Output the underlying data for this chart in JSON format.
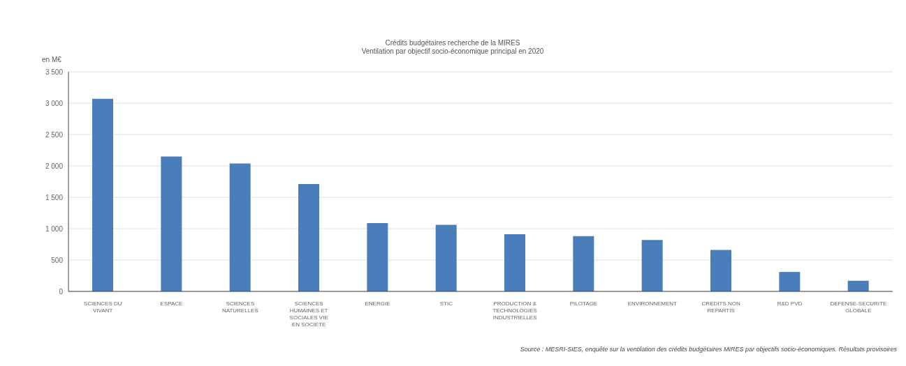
{
  "chart_data": {
    "type": "bar",
    "title": "Crédits budgétaires recherche de la MIRES",
    "subtitle": "Ventilation par objectif socio-économique principal en 2020",
    "ylabel": "en M€",
    "categories": [
      "SCIENCES DU VIVANT",
      "ESPACE",
      "SCIENCES NATURELLES",
      "SCIENCES HUMAINES ET SOCIALES VIE EN SOCIETE",
      "ENERGIE",
      "STIC",
      "PRODUCTION & TECHNOLOGIES INDUSTRIELLES",
      "PILOTAGE",
      "ENVIRONNEMENT",
      "CREDITS NON REPARTIS",
      "R&D PVD",
      "DEFENSE-SECURITE GLOBALE"
    ],
    "values": [
      3070,
      2150,
      2040,
      1710,
      1090,
      1060,
      910,
      880,
      820,
      660,
      310,
      170
    ],
    "color": "#4a7ebb",
    "ylim": [
      0,
      3500
    ],
    "yticks": [
      0,
      500,
      {
        "value": 1000,
        "label": "1 000"
      },
      {
        "value": 1500,
        "label": "1 500"
      },
      {
        "value": 2000,
        "label": "2 000"
      },
      {
        "value": 2500,
        "label": "2 500"
      },
      {
        "value": 3000,
        "label": "3 000"
      },
      {
        "value": 3500,
        "label": "3 500"
      }
    ],
    "grid": "y",
    "annotations": [
      "Source : MESRI-SIES, enquête sur la ventilation des crédits budgétaires MIRES par objectifs socio-économiques. Résultats provisoires"
    ]
  }
}
